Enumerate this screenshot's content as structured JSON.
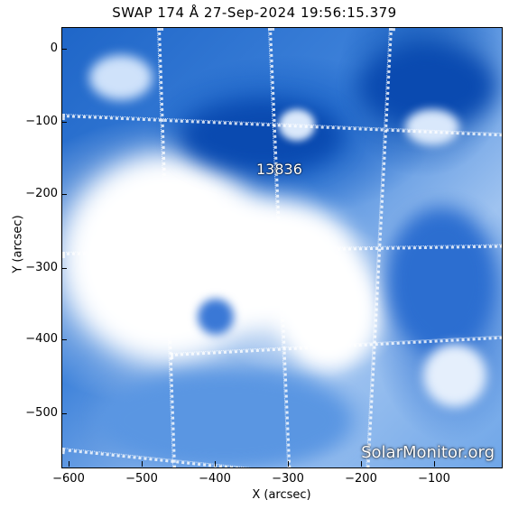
{
  "title": "SWAP 174 Å 27-Sep-2024 19:56:15.379",
  "region_label": "13836",
  "watermark": "SolarMonitor.org",
  "axes": {
    "xlabel": "X (arcsec)",
    "ylabel": "Y (arcsec)",
    "xticks": [
      "−600",
      "−500",
      "−400",
      "−300",
      "−200",
      "−100"
    ],
    "yticks": [
      "0",
      "−100",
      "−200",
      "−300",
      "−400",
      "−500"
    ]
  },
  "colors": {
    "dark_blue": "#0b4fb0",
    "mid_blue": "#3e82da",
    "saturated": "#ffffff"
  }
}
